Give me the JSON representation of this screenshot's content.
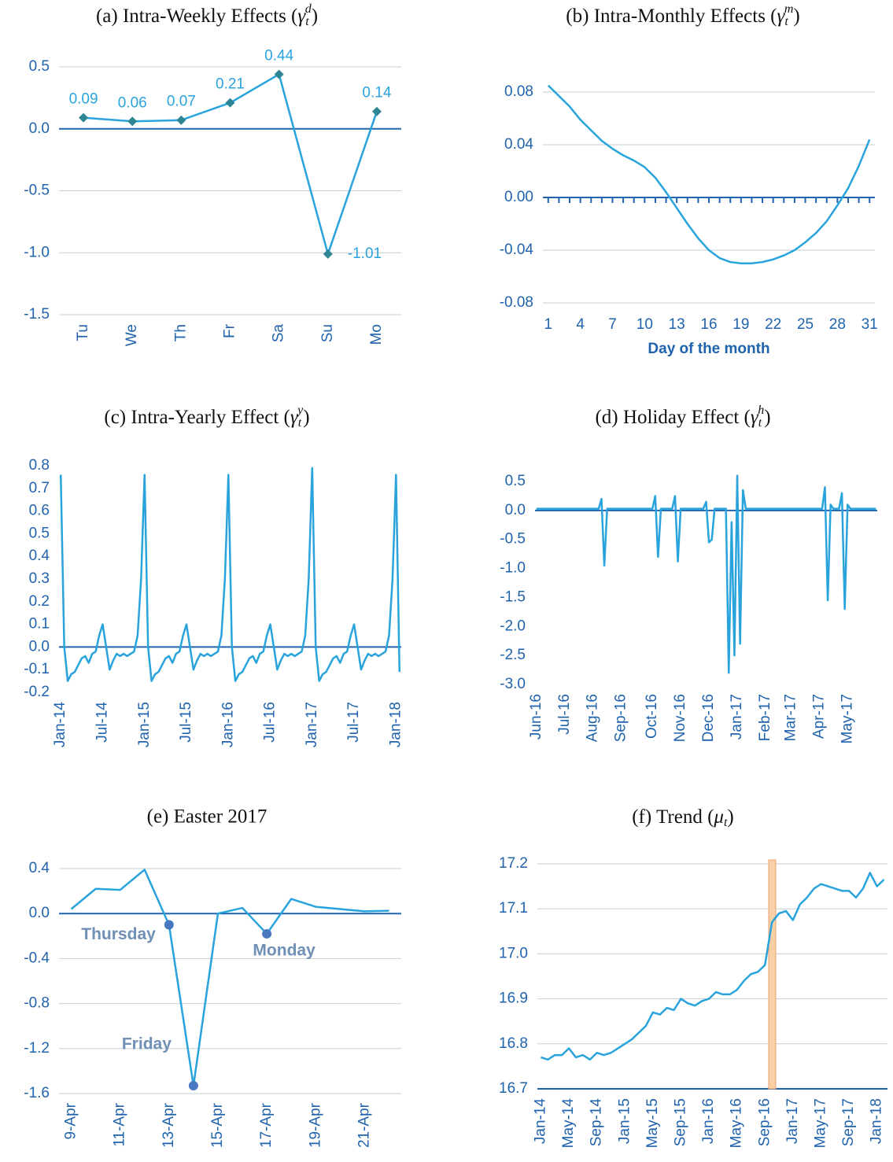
{
  "chart_data": [
    {
      "type": "line",
      "title": {
        "lead": "(a) Intra-Weekly Effects (",
        "sym": "γ",
        "sub": "t",
        "sup": "d",
        "close": ")"
      },
      "categories": [
        "Tu",
        "We",
        "Th",
        "Fr",
        "Sa",
        "Su",
        "Mo"
      ],
      "values": [
        0.09,
        0.06,
        0.07,
        0.21,
        0.44,
        -1.01,
        0.14
      ],
      "color": "#29a3dc",
      "marker": "diamond",
      "marker_color": "#2e8593",
      "data_labels": true,
      "ylim": [
        -1.5,
        0.5
      ],
      "yticks": [
        0.5,
        {
          "value": 0,
          "label": "0.0"
        },
        -0.5,
        {
          "value": -1,
          "label": "-1.0"
        },
        -1.5
      ],
      "grid": true
    },
    {
      "type": "line",
      "title": {
        "lead": "(b) Intra-Monthly Effects (",
        "sym": "γ",
        "sub": "t",
        "sup": "m",
        "close": ")"
      },
      "x": [
        1,
        2,
        3,
        4,
        5,
        6,
        7,
        8,
        9,
        10,
        11,
        12,
        13,
        14,
        15,
        16,
        17,
        18,
        19,
        20,
        21,
        22,
        23,
        24,
        25,
        26,
        27,
        28,
        29,
        30,
        31
      ],
      "values": [
        0.085,
        0.077,
        0.069,
        0.059,
        0.051,
        0.043,
        0.037,
        0.032,
        0.028,
        0.023,
        0.015,
        0.004,
        -0.008,
        -0.02,
        -0.031,
        -0.04,
        -0.046,
        -0.049,
        -0.05,
        -0.05,
        -0.049,
        -0.047,
        -0.044,
        -0.04,
        -0.034,
        -0.027,
        -0.018,
        -0.006,
        0.007,
        0.024,
        0.044
      ],
      "color": "#29a3dc",
      "xlim": [
        0.5,
        31.5
      ],
      "xticks": [
        1,
        4,
        7,
        10,
        13,
        16,
        19,
        22,
        25,
        28,
        31
      ],
      "xlabel": "Day of the month",
      "ylim": [
        -0.08,
        0.08
      ],
      "yticks": [
        0.08,
        0.04,
        {
          "value": 0,
          "label": "0.00"
        },
        -0.04,
        -0.08
      ],
      "grid": true
    },
    {
      "type": "line",
      "title": {
        "lead": "(c) Intra-Yearly Effect (",
        "sym": "γ",
        "sub": "t",
        "sup": "y",
        "close": ")"
      },
      "categories": [
        "Jan-14",
        null,
        null,
        null,
        null,
        null,
        null,
        null,
        null,
        null,
        null,
        null,
        "Jul-14",
        null,
        null,
        null,
        null,
        null,
        null,
        null,
        null,
        null,
        null,
        null,
        "Jan-15",
        null,
        null,
        null,
        null,
        null,
        null,
        null,
        null,
        null,
        null,
        null,
        "Jul-15",
        null,
        null,
        null,
        null,
        null,
        null,
        null,
        null,
        null,
        null,
        null,
        "Jan-16",
        null,
        null,
        null,
        null,
        null,
        null,
        null,
        null,
        null,
        null,
        null,
        "Jul-16",
        null,
        null,
        null,
        null,
        null,
        null,
        null,
        null,
        null,
        null,
        null,
        "Jan-17",
        null,
        null,
        null,
        null,
        null,
        null,
        null,
        null,
        null,
        null,
        null,
        "Jul-17",
        null,
        null,
        null,
        null,
        null,
        null,
        null,
        null,
        null,
        null,
        null,
        "Jan-18",
        null
      ],
      "values": [
        0.76,
        0.0,
        -0.15,
        -0.12,
        -0.11,
        -0.08,
        -0.05,
        -0.04,
        -0.07,
        -0.03,
        -0.02,
        0.05,
        0.1,
        0.0,
        -0.1,
        -0.06,
        -0.03,
        -0.04,
        -0.03,
        -0.04,
        -0.03,
        -0.02,
        0.05,
        0.3,
        0.76,
        0.0,
        -0.15,
        -0.12,
        -0.11,
        -0.08,
        -0.05,
        -0.04,
        -0.07,
        -0.03,
        -0.02,
        0.05,
        0.1,
        0.0,
        -0.1,
        -0.06,
        -0.03,
        -0.04,
        -0.03,
        -0.04,
        -0.03,
        -0.02,
        0.05,
        0.3,
        0.76,
        0.0,
        -0.15,
        -0.12,
        -0.11,
        -0.08,
        -0.05,
        -0.04,
        -0.07,
        -0.03,
        -0.02,
        0.05,
        0.1,
        0.0,
        -0.1,
        -0.06,
        -0.03,
        -0.04,
        -0.03,
        -0.04,
        -0.03,
        -0.02,
        0.05,
        0.3,
        0.79,
        0.0,
        -0.15,
        -0.12,
        -0.11,
        -0.08,
        -0.05,
        -0.04,
        -0.07,
        -0.03,
        -0.02,
        0.05,
        0.1,
        0.0,
        -0.1,
        -0.06,
        -0.03,
        -0.04,
        -0.03,
        -0.04,
        -0.03,
        -0.02,
        0.05,
        0.3,
        0.76,
        -0.11
      ],
      "color": "#29a3dc",
      "ylim": [
        -0.2,
        0.8
      ],
      "yticks": [
        0.8,
        0.7,
        0.6,
        0.5,
        0.4,
        0.3,
        0.2,
        0.1,
        {
          "value": 0,
          "label": "0.0"
        },
        -0.1,
        -0.2
      ],
      "grid": false
    },
    {
      "type": "line",
      "title": {
        "lead": "(d) Holiday Effect (",
        "sym": "γ",
        "sub": "t",
        "sup": "h",
        "close": ")"
      },
      "categories": [
        "Jun-16",
        null,
        null,
        null,
        null,
        null,
        null,
        null,
        null,
        null,
        "Jul-16",
        null,
        null,
        null,
        null,
        null,
        null,
        null,
        null,
        null,
        "Aug-16",
        null,
        null,
        null,
        null,
        null,
        null,
        null,
        null,
        null,
        "Sep-16",
        null,
        null,
        null,
        null,
        null,
        null,
        null,
        null,
        null,
        null,
        "Oct-16",
        null,
        null,
        null,
        null,
        null,
        null,
        null,
        null,
        null,
        "Nov-16",
        null,
        null,
        null,
        null,
        null,
        null,
        null,
        null,
        null,
        "Dec-16",
        null,
        null,
        null,
        null,
        null,
        null,
        null,
        null,
        null,
        "Jan-17",
        null,
        null,
        null,
        null,
        null,
        null,
        null,
        null,
        null,
        "Feb-17",
        null,
        null,
        null,
        null,
        null,
        null,
        null,
        null,
        "Mar-17",
        null,
        null,
        null,
        null,
        null,
        null,
        null,
        null,
        null,
        "Apr-17",
        null,
        null,
        null,
        null,
        null,
        null,
        null,
        null,
        null,
        "May-17",
        null,
        null,
        null,
        null,
        null,
        null,
        null,
        null,
        null,
        null
      ],
      "values": [
        0.03,
        0.03,
        0.03,
        0.03,
        0.03,
        0.03,
        0.03,
        0.03,
        0.03,
        0.03,
        0.03,
        0.03,
        0.03,
        0.03,
        0.03,
        0.03,
        0.03,
        0.03,
        0.03,
        0.03,
        0.03,
        0.03,
        0.03,
        0.2,
        -0.95,
        0.03,
        0.03,
        0.03,
        0.03,
        0.03,
        0.03,
        0.03,
        0.03,
        0.03,
        0.03,
        0.03,
        0.03,
        0.03,
        0.03,
        0.03,
        0.03,
        0.03,
        0.25,
        -0.8,
        0.03,
        0.03,
        0.03,
        0.03,
        0.03,
        0.25,
        -0.88,
        0.03,
        0.03,
        0.03,
        0.03,
        0.03,
        0.03,
        0.03,
        0.03,
        0.03,
        0.15,
        -0.55,
        -0.5,
        0.03,
        0.03,
        0.03,
        0.03,
        0.03,
        -2.8,
        -0.2,
        -2.5,
        0.6,
        -2.3,
        0.35,
        0.03,
        0.03,
        0.03,
        0.03,
        0.03,
        0.03,
        0.03,
        0.03,
        0.03,
        0.03,
        0.03,
        0.03,
        0.03,
        0.03,
        0.03,
        0.03,
        0.03,
        0.03,
        0.03,
        0.03,
        0.03,
        0.03,
        0.03,
        0.03,
        0.03,
        0.03,
        0.03,
        0.03,
        0.4,
        -1.55,
        0.1,
        0.03,
        0.03,
        0.03,
        0.3,
        -1.7,
        0.1,
        0.03,
        0.03,
        0.03,
        0.03,
        0.03,
        0.03,
        0.03,
        0.03,
        0.03,
        0.03
      ],
      "color": "#29a3dc",
      "ylim": [
        -3,
        0.5
      ],
      "yticks": [
        0.5,
        {
          "value": 0,
          "label": "0.0"
        },
        -0.5,
        {
          "value": -1,
          "label": "-1.0"
        },
        -1.5,
        {
          "value": -2,
          "label": "-2.0"
        },
        -2.5,
        {
          "value": -3,
          "label": "-3.0"
        }
      ],
      "grid": false
    },
    {
      "type": "line",
      "title": "(e) Easter 2017",
      "categories": [
        "9-Apr",
        null,
        "11-Apr",
        null,
        "13-Apr",
        null,
        "15-Apr",
        null,
        "17-Apr",
        null,
        "19-Apr",
        null,
        "21-Apr",
        null
      ],
      "values": [
        0.04,
        0.22,
        0.21,
        0.39,
        -0.1,
        -1.53,
        0.0,
        0.05,
        -0.18,
        0.13,
        0.06,
        0.04,
        0.02,
        0.025
      ],
      "point_labels": [
        null,
        null,
        null,
        null,
        "Thursday",
        "Friday",
        null,
        null,
        "Monday",
        null,
        null,
        null,
        null,
        null
      ],
      "point_color": "#4a78c0",
      "color": "#29a3dc",
      "ylim": [
        -1.6,
        0.4
      ],
      "yticks": [
        0.4,
        {
          "value": 0,
          "label": "0.0"
        },
        -0.4,
        -0.8,
        -1.2,
        -1.6
      ],
      "grid": true
    },
    {
      "type": "line",
      "title": {
        "lead": "(f) Trend (",
        "sym": "μ",
        "sub": "t",
        "close": ")"
      },
      "categories": [
        "Jan-14",
        null,
        null,
        null,
        "May-14",
        null,
        null,
        null,
        "Sep-14",
        null,
        null,
        null,
        "Jan-15",
        null,
        null,
        null,
        "May-15",
        null,
        null,
        null,
        "Sep-15",
        null,
        null,
        null,
        "Jan-16",
        null,
        null,
        null,
        "May-16",
        null,
        null,
        null,
        "Sep-16",
        null,
        null,
        null,
        "Jan-17",
        null,
        null,
        null,
        "May-17",
        null,
        null,
        null,
        "Sep-17",
        null,
        null,
        null,
        "Jan-18",
        null
      ],
      "values": [
        16.77,
        16.765,
        16.775,
        16.775,
        16.79,
        16.77,
        16.775,
        16.765,
        16.78,
        16.775,
        16.78,
        16.79,
        16.8,
        16.81,
        16.825,
        16.84,
        16.87,
        16.865,
        16.88,
        16.875,
        16.9,
        16.89,
        16.885,
        16.895,
        16.9,
        16.915,
        16.91,
        16.91,
        16.92,
        16.94,
        16.955,
        16.96,
        16.975,
        17.07,
        17.09,
        17.095,
        17.075,
        17.11,
        17.125,
        17.145,
        17.155,
        17.15,
        17.145,
        17.14,
        17.14,
        17.125,
        17.145,
        17.18,
        17.15,
        17.165
      ],
      "color": "#29a3dc",
      "ylim": [
        16.7,
        17.2
      ],
      "yticks": [
        17.2,
        17.1,
        {
          "value": 17,
          "label": "17.0"
        },
        16.9,
        16.8,
        16.7
      ],
      "grid": true
    }
  ]
}
